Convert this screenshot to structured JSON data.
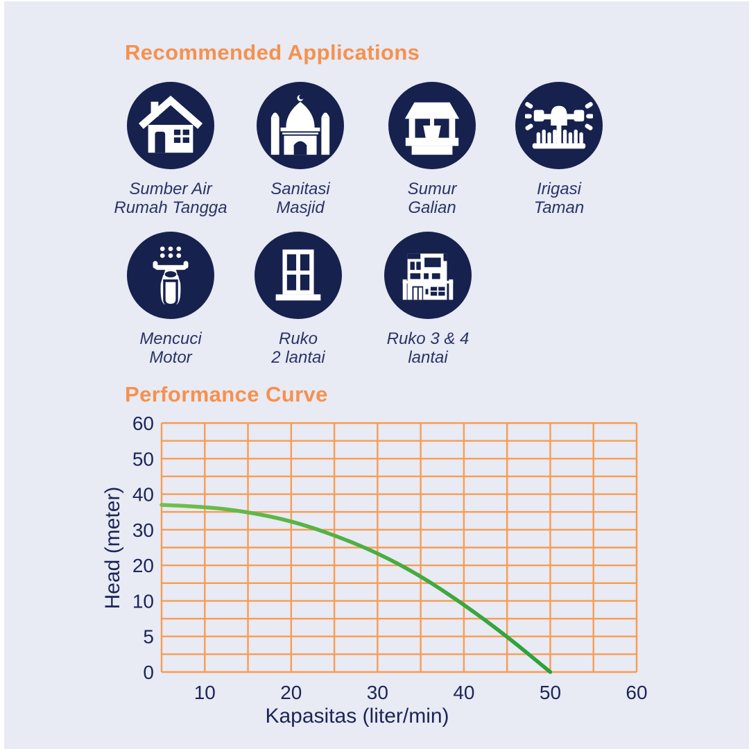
{
  "colors": {
    "background": "#E8EAF4",
    "navy": "#16214E",
    "heading_orange": "#F6914D",
    "label_navy": "#283465",
    "tick_navy": "#1B2557"
  },
  "sections": {
    "applications": {
      "title": "Recommended Applications"
    },
    "performance": {
      "title": "Performance Curve"
    }
  },
  "applications": [
    {
      "icon": "house-icon",
      "line1": "Sumber Air",
      "line2": "Rumah Tangga"
    },
    {
      "icon": "mosque-icon",
      "line1": "Sanitasi",
      "line2": "Masjid"
    },
    {
      "icon": "well-icon",
      "line1": "Sumur",
      "line2": "Galian"
    },
    {
      "icon": "sprinkler-icon",
      "line1": "Irigasi",
      "line2": "Taman"
    },
    {
      "icon": "scooter-icon",
      "line1": "Mencuci",
      "line2": "Motor"
    },
    {
      "icon": "building-2-icon",
      "line1": "Ruko",
      "line2": "2 lantai"
    },
    {
      "icon": "building-34-icon",
      "line1": "Ruko 3 & 4",
      "line2": "lantai"
    }
  ],
  "chart_data": {
    "type": "line",
    "title": "Performance Curve",
    "xlabel": "Kapasitas (liter/min)",
    "ylabel": "Head (meter)",
    "x": [
      5,
      10,
      15,
      20,
      25,
      30,
      35,
      40,
      45,
      50
    ],
    "y": [
      37,
      36.5,
      35,
      32.5,
      28.5,
      23.5,
      17,
      9.5,
      5,
      0
    ],
    "xticks": [
      10,
      20,
      30,
      40,
      50,
      60
    ],
    "yticks": [
      60,
      50,
      40,
      30,
      20,
      10,
      5,
      0
    ],
    "xlim": [
      5,
      60
    ],
    "xgrid_step": 5,
    "grid": true,
    "legend": "none",
    "grid_color": "#F79C52",
    "line_color_start": "#72BF4B",
    "line_color_end": "#2AA03C"
  }
}
